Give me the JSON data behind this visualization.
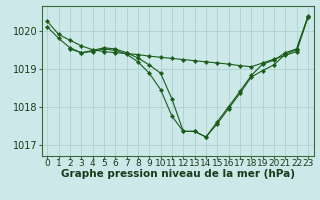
{
  "background_color": "#cce8e8",
  "plot_bg_color": "#cce8e8",
  "line_color": "#1a5c1a",
  "marker_color": "#1a5c1a",
  "xlabel": "Graphe pression niveau de la mer (hPa)",
  "ylim": [
    1016.7,
    1020.65
  ],
  "xlim": [
    -0.5,
    23.5
  ],
  "yticks": [
    1017,
    1018,
    1019,
    1020
  ],
  "xticks": [
    0,
    1,
    2,
    3,
    4,
    5,
    6,
    7,
    8,
    9,
    10,
    11,
    12,
    13,
    14,
    15,
    16,
    17,
    18,
    19,
    20,
    21,
    22,
    23
  ],
  "line1_x": [
    0,
    1,
    2,
    3,
    4,
    5,
    6,
    7,
    8,
    9,
    10,
    11,
    12,
    13,
    14,
    15,
    16,
    17,
    18,
    19,
    20,
    21,
    22,
    23
  ],
  "line1_y": [
    1020.25,
    1019.9,
    1019.75,
    1019.6,
    1019.5,
    1019.45,
    1019.42,
    1019.4,
    1019.37,
    1019.33,
    1019.3,
    1019.27,
    1019.24,
    1019.21,
    1019.18,
    1019.15,
    1019.12,
    1019.08,
    1019.05,
    1019.15,
    1019.25,
    1019.35,
    1019.45,
    1020.35
  ],
  "line2_x": [
    0,
    1,
    2,
    3,
    4,
    5,
    6,
    7,
    8,
    9,
    10,
    11,
    12,
    13,
    14,
    15,
    16,
    17,
    18,
    19,
    20,
    21,
    22,
    23
  ],
  "line2_y": [
    1020.1,
    1019.8,
    1019.55,
    1019.42,
    1019.45,
    1019.52,
    1019.48,
    1019.38,
    1019.18,
    1018.88,
    1018.45,
    1017.75,
    1017.35,
    1017.35,
    1017.2,
    1017.55,
    1017.95,
    1018.35,
    1018.78,
    1018.95,
    1019.1,
    1019.38,
    1019.5,
    1020.35
  ],
  "line3_x": [
    2,
    3,
    4,
    5,
    6,
    7,
    8,
    9,
    10,
    11,
    12,
    13,
    14,
    15,
    16,
    17,
    18,
    19,
    20,
    21,
    22,
    23
  ],
  "line3_y": [
    1019.52,
    1019.42,
    1019.48,
    1019.55,
    1019.52,
    1019.42,
    1019.28,
    1019.1,
    1018.88,
    1018.2,
    1017.35,
    1017.35,
    1017.2,
    1017.6,
    1018.0,
    1018.4,
    1018.82,
    1019.12,
    1019.22,
    1019.42,
    1019.52,
    1020.38
  ],
  "grid_color": "#aacccc",
  "xlabel_fontsize": 7.5,
  "tick_fontsize": 6.5,
  "ytick_fontsize": 7.0
}
